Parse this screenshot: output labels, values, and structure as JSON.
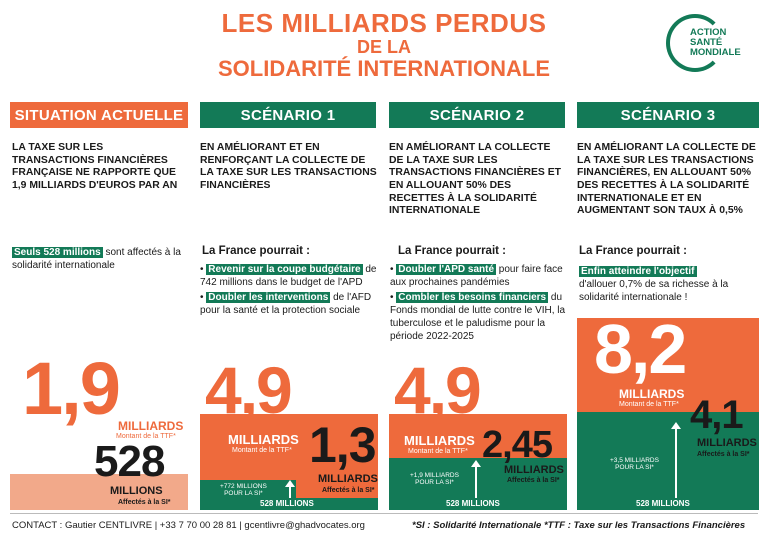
{
  "header": {
    "title_line1": "LES MILLIARDS PERDUS",
    "title_line2": "DE LA",
    "title_line3": "SOLIDARITÉ INTERNATIONALE",
    "logo_line1": "ACTION",
    "logo_line2": "SANTÉ",
    "logo_line3": "MONDIALE"
  },
  "columns": [
    {
      "heading": "SITUATION ACTUELLE",
      "description": "LA TAXE SUR LES TRANSACTIONS FINANCIÈRES FRANÇAISE NE RAPPORTE QUE 1,9 MILLIARDS D'EUROS PAR AN",
      "highlight": "Seuls 528 millions",
      "highlight_rest": "sont affectés à la solidarité internationale",
      "big_value": "1,9",
      "big_unit": "MILLIARDS",
      "big_caption": "Montant de la TTF*",
      "small_value": "528",
      "small_unit": "MILLIONS",
      "small_caption": "Affectés à la SI*"
    },
    {
      "heading": "SCÉNARIO 1",
      "description": "EN AMÉLIORANT ET EN RENFORÇANT LA COLLECTE DE LA TAXE SUR LES TRANSACTIONS FINANCIÈRES",
      "france": "La France pourrait :",
      "bullet1_hl": "Revenir sur la coupe budgétaire",
      "bullet1_rest": "de 742 millions dans le budget de l'APD",
      "bullet2_hl": "Doubler les interventions",
      "bullet2_rest": "de l'AFD pour la santé et la protection sociale",
      "big_value": "4,9",
      "big_unit": "MILLIARDS",
      "big_caption": "Montant de la TTF*",
      "small_value": "1,3",
      "small_unit": "MILLIARDS",
      "small_caption": "Affectés à la SI*",
      "plus_line1": "+772 MILLIONS",
      "plus_line2": "POUR LA SI*",
      "base": "528 MILLIONS"
    },
    {
      "heading": "SCÉNARIO 2",
      "description": "EN AMÉLIORANT LA COLLECTE DE LA TAXE SUR LES TRANSACTIONS FINANCIÈRES ET EN ALLOUANT 50% DES RECETTES À LA SOLIDARITÉ INTERNATIONALE",
      "france": "La France pourrait :",
      "bullet1_hl": "Doubler l'APD santé",
      "bullet1_rest": "pour faire face aux prochaines pandémies",
      "bullet2_hl": "Combler les besoins financiers",
      "bullet2_rest": "du Fonds mondial de lutte contre le VIH, la tuberculose et le paludisme pour la période 2022-2025",
      "big_value": "4,9",
      "big_unit": "MILLIARDS",
      "big_caption": "Montant de la TTF*",
      "small_value": "2,45",
      "small_unit": "MILLIARDS",
      "small_caption": "Affectés à la SI*",
      "plus_line1": "+1,9 MILLIARDS",
      "plus_line2": "POUR LA SI*",
      "base": "528 MILLIONS"
    },
    {
      "heading": "SCÉNARIO 3",
      "description": "EN AMÉLIORANT LA COLLECTE DE LA TAXE SUR LES TRANSACTIONS FINANCIÈRES, EN ALLOUANT 50% DES RECETTES À LA SOLIDARITÉ INTERNATIONALE ET EN AUGMENTANT SON TAUX À 0,5%",
      "france": "La France pourrait :",
      "bullet1_hl": "Enfin atteindre l'objectif",
      "bullet1_rest": "d'allouer 0,7% de sa richesse à la solidarité internationale !",
      "big_value": "8,2",
      "big_unit": "MILLIARDS",
      "big_caption": "Montant de la TTF*",
      "small_value": "4,1",
      "small_unit": "MILLIARDS",
      "small_caption": "Affectés à la SI*",
      "plus_line1": "+3,5 MILLIARDS",
      "plus_line2": "POUR LA SI*",
      "base": "528 MILLIONS"
    }
  ],
  "footer": {
    "contact": "CONTACT :  Gautier CENTLIVRE | +33 7 70 00 28 81 | gcentlivre@ghadvocates.org",
    "legend": "*SI : Solidarité Internationale *TTF : Taxe sur les Transactions Financières"
  },
  "colors": {
    "orange": "#ee6a3c",
    "green": "#137a57",
    "light_orange": "#f2a98a"
  }
}
